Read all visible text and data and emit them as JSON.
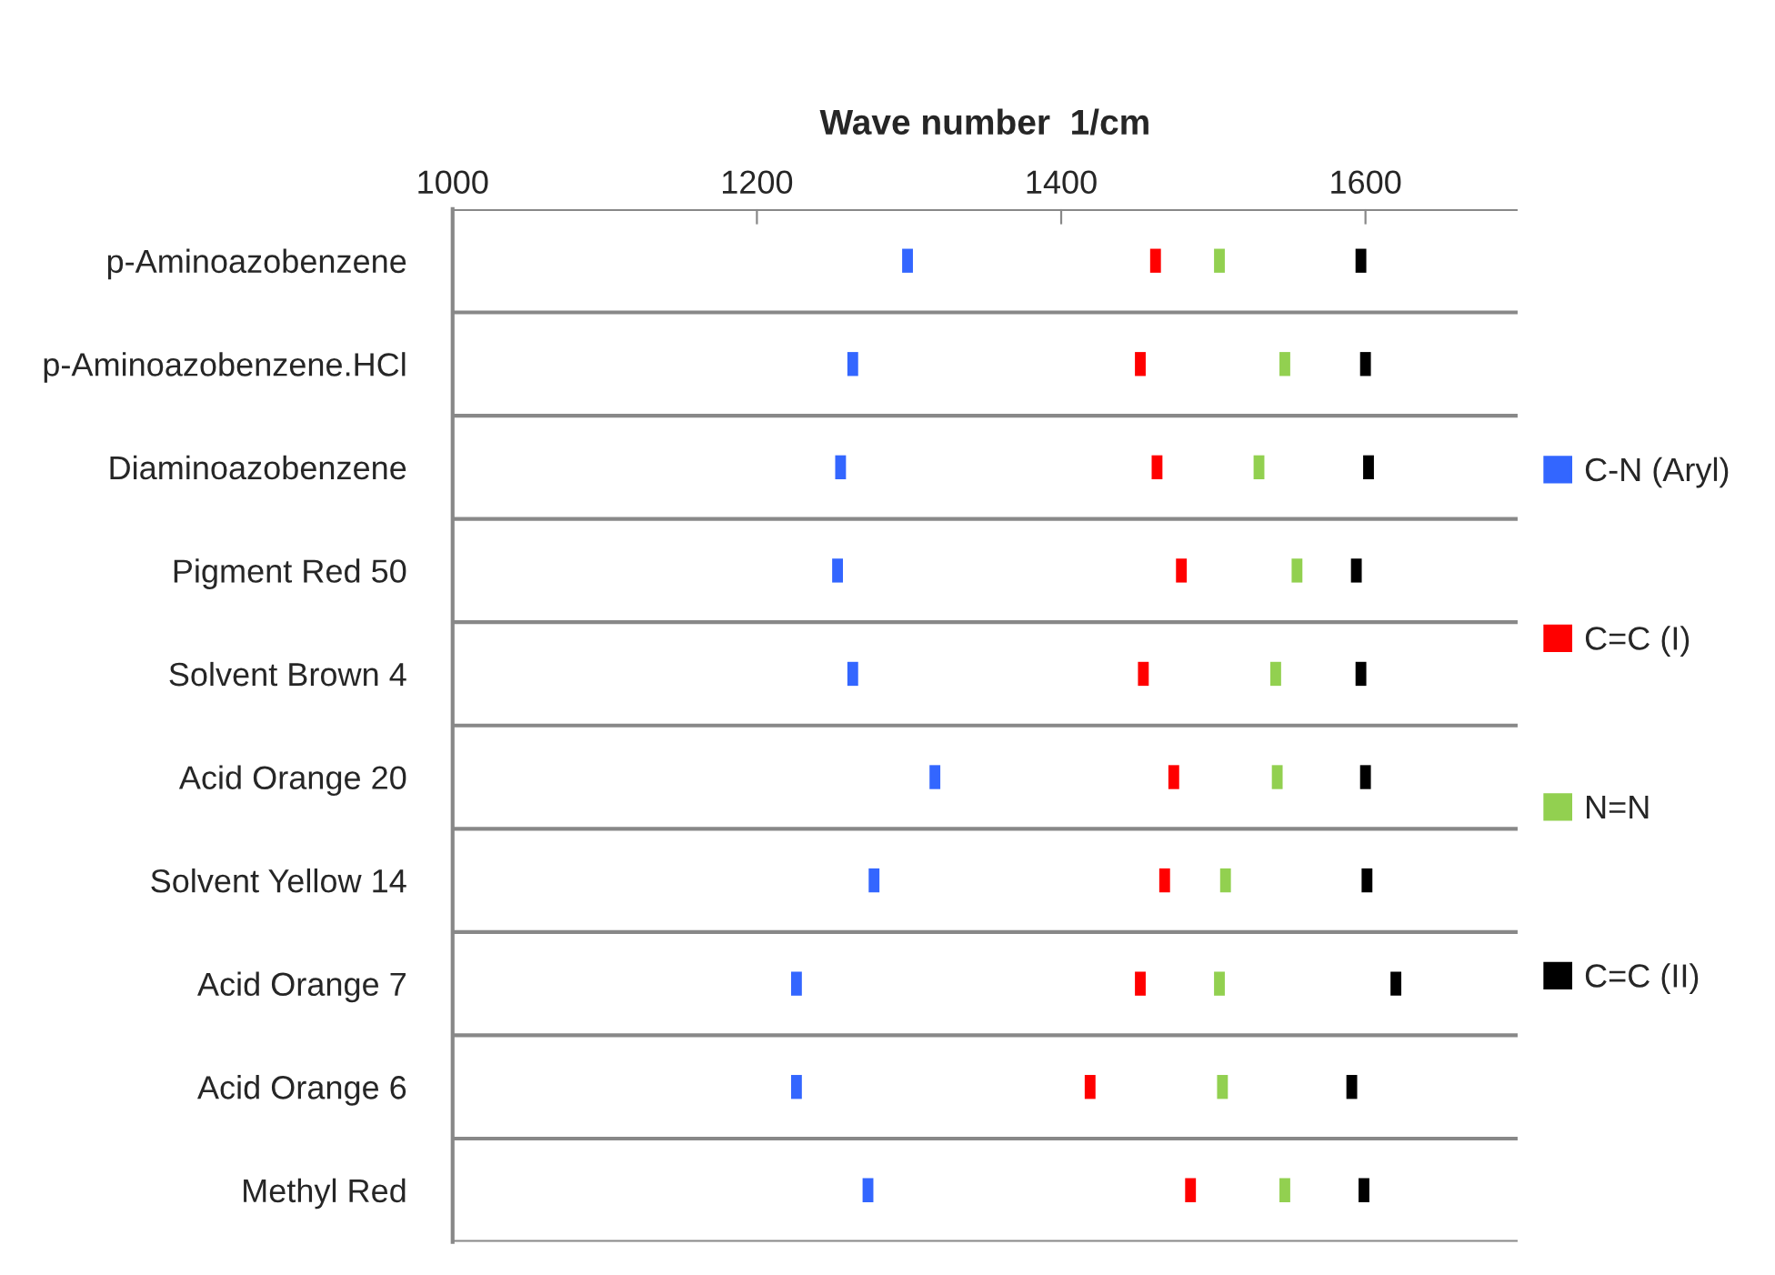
{
  "chart_data": {
    "type": "scatter",
    "orientation": "horizontal",
    "xlabel": "Wave number  1/cm",
    "categories": [
      "p-Aminoazobenzene",
      "p-Aminoazobenzene.HCl",
      "Diaminoazobenzene",
      "Pigment Red 50",
      "Solvent Brown 4",
      "Acid Orange 20",
      "Solvent Yellow 14",
      "Acid Orange 7",
      "Acid Orange 6",
      "Methyl Red"
    ],
    "series": [
      {
        "name": "C-N (Aryl)",
        "color": "#3366ff",
        "values": [
          1299,
          1263,
          1255,
          1253,
          1263,
          1317,
          1277,
          1226,
          1226,
          1273
        ]
      },
      {
        "name": "C=C (I)",
        "color": "#ff0000",
        "values": [
          1462,
          1452,
          1463,
          1479,
          1454,
          1474,
          1468,
          1452,
          1419,
          1485
        ]
      },
      {
        "name": "N=N",
        "color": "#92d050",
        "values": [
          1504,
          1547,
          1530,
          1555,
          1541,
          1542,
          1508,
          1504,
          1506,
          1547
        ]
      },
      {
        "name": "C=C (II)",
        "color": "#000000",
        "values": [
          1597,
          1600,
          1602,
          1594,
          1597,
          1600,
          1601,
          1620,
          1591,
          1599
        ]
      }
    ],
    "xlim": [
      1000,
      1700
    ],
    "xticks": [
      1000,
      1200,
      1400,
      1600
    ],
    "grid": "y",
    "legend": "right"
  }
}
